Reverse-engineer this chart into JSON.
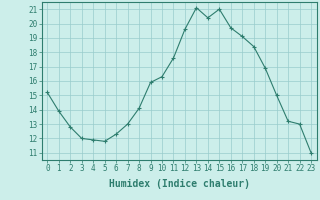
{
  "x": [
    0,
    1,
    2,
    3,
    4,
    5,
    6,
    7,
    8,
    9,
    10,
    11,
    12,
    13,
    14,
    15,
    16,
    17,
    18,
    19,
    20,
    21,
    22,
    23
  ],
  "y": [
    15.2,
    13.9,
    12.8,
    12.0,
    11.9,
    11.8,
    12.3,
    13.0,
    14.1,
    15.9,
    16.3,
    17.6,
    19.6,
    21.1,
    20.4,
    21.0,
    19.7,
    19.1,
    18.4,
    16.9,
    15.0,
    13.2,
    13.0,
    11.0
  ],
  "line_color": "#2e7d6e",
  "marker": "+",
  "background_color": "#cceeea",
  "grid_color": "#99cccc",
  "xlabel": "Humidex (Indice chaleur)",
  "xlim": [
    -0.5,
    23.5
  ],
  "ylim": [
    10.5,
    21.5
  ],
  "yticks": [
    11,
    12,
    13,
    14,
    15,
    16,
    17,
    18,
    19,
    20,
    21
  ],
  "tick_color": "#2e7d6e",
  "label_fontsize": 6.5,
  "tick_fontsize": 5.5,
  "xlabel_fontsize": 7
}
